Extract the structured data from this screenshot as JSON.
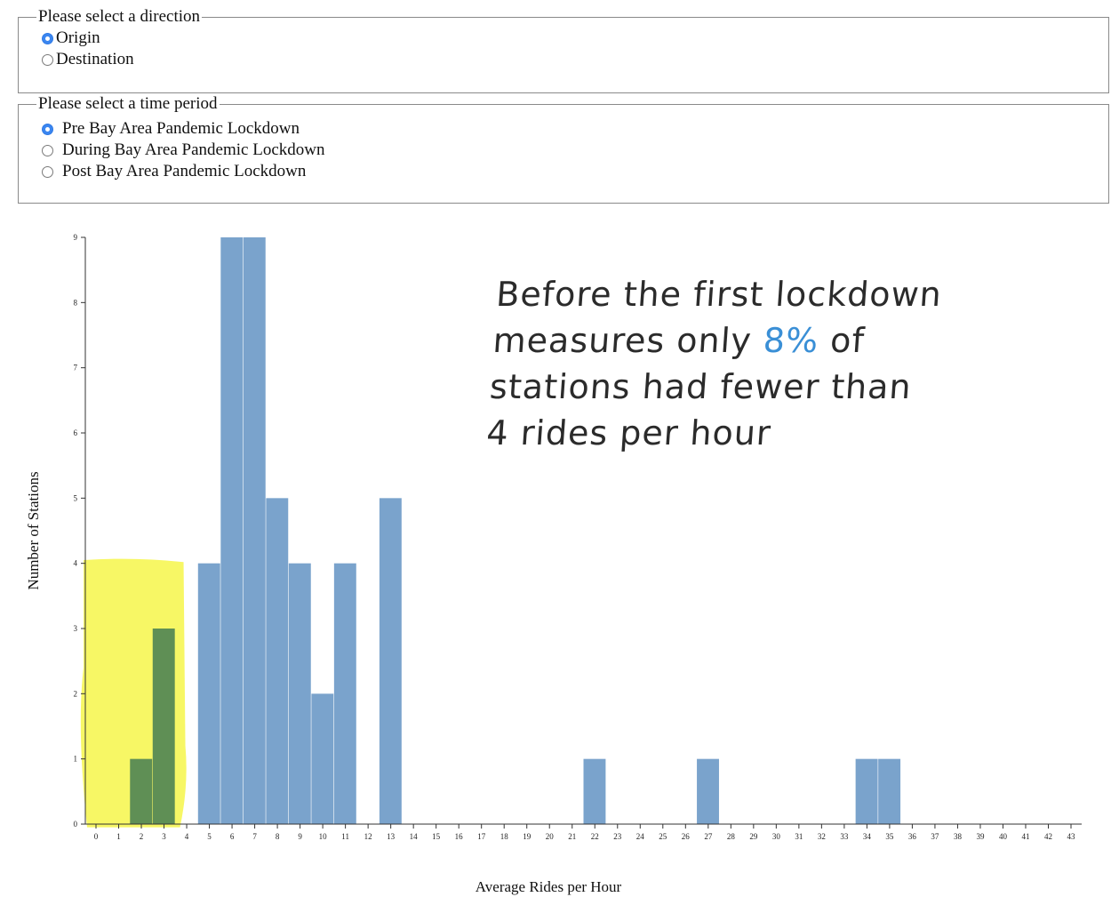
{
  "direction": {
    "legend": "Please select a direction",
    "options": [
      {
        "label": "Origin",
        "selected": true
      },
      {
        "label": "Destination",
        "selected": false
      }
    ]
  },
  "period": {
    "legend": "Please select a time period",
    "options": [
      {
        "label": "Pre Bay Area Pandemic Lockdown",
        "selected": true
      },
      {
        "label": "During Bay Area Pandemic Lockdown",
        "selected": false
      },
      {
        "label": "Post Bay Area Pandemic Lockdown",
        "selected": false
      }
    ]
  },
  "annotation": {
    "line1": "Before the first lockdown",
    "line2_pre": "measures only ",
    "line2_highlight": "8%",
    "line2_post": " of",
    "line3": "stations had fewer than",
    "line4": "4 rides per hour",
    "highlight_color": "#3a8fd6"
  },
  "chart_data": {
    "type": "bar",
    "xlabel": "Average Rides per Hour",
    "ylabel": "Number of Stations",
    "ylim": [
      0,
      9
    ],
    "y_ticks": [
      0,
      1,
      2,
      3,
      4,
      5,
      6,
      7,
      8,
      9
    ],
    "x_ticks": [
      0,
      1,
      2,
      3,
      4,
      5,
      6,
      7,
      8,
      9,
      10,
      11,
      12,
      13,
      14,
      15,
      16,
      17,
      18,
      19,
      20,
      21,
      22,
      23,
      24,
      25,
      26,
      27,
      28,
      29,
      30,
      31,
      32,
      33,
      34,
      35,
      36,
      37,
      38,
      39,
      40,
      41,
      42,
      43
    ],
    "bars": [
      {
        "x": 2,
        "value": 1,
        "highlighted": true
      },
      {
        "x": 3,
        "value": 3,
        "highlighted": true
      },
      {
        "x": 5,
        "value": 4
      },
      {
        "x": 6,
        "value": 9
      },
      {
        "x": 7,
        "value": 9
      },
      {
        "x": 8,
        "value": 5
      },
      {
        "x": 9,
        "value": 4
      },
      {
        "x": 10,
        "value": 2
      },
      {
        "x": 11,
        "value": 4
      },
      {
        "x": 13,
        "value": 5
      },
      {
        "x": 22,
        "value": 1
      },
      {
        "x": 27,
        "value": 1
      },
      {
        "x": 34,
        "value": 1
      },
      {
        "x": 35,
        "value": 1
      }
    ],
    "highlight_range": [
      0,
      3
    ],
    "colors": {
      "bar": "#7aa3cc",
      "highlighted_bar": "#5f8f55",
      "highlight": "#f6f64a"
    }
  }
}
